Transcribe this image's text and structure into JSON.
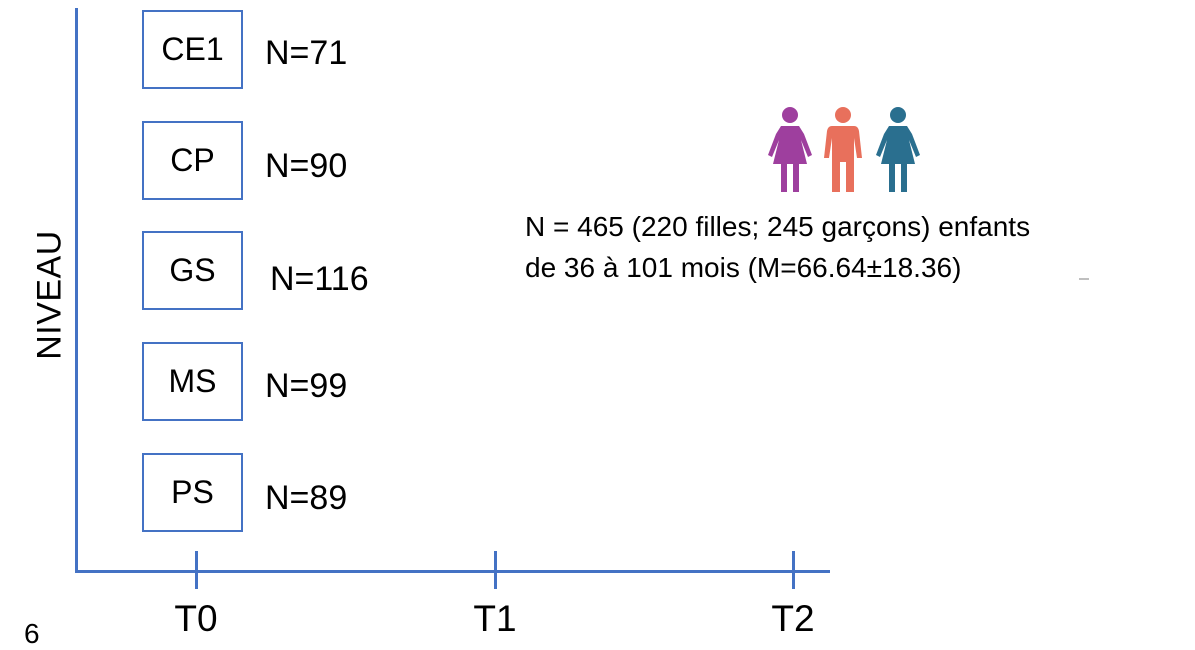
{
  "y_axis_label": "NIVEAU",
  "x_axis": {
    "ticks": [
      "T0",
      "T1",
      "T2"
    ]
  },
  "levels": [
    {
      "label": "CE1",
      "count": "N=71"
    },
    {
      "label": "CP",
      "count": "N=90"
    },
    {
      "label": "GS",
      "count": "N=116"
    },
    {
      "label": "MS",
      "count": "N=99"
    },
    {
      "label": "PS",
      "count": "N=89"
    }
  ],
  "sample_info": {
    "line1": "N = 465 (220 filles; 245 garçons) enfants",
    "line2": "de 36 à 101 mois (M=66.64±18.36)"
  },
  "icons": {
    "people": [
      {
        "name": "girl-figure-icon",
        "color": "#9e3f9e"
      },
      {
        "name": "boy-figure-icon",
        "color": "#e8705c"
      },
      {
        "name": "girl-figure-icon",
        "color": "#2a6f8f"
      }
    ]
  },
  "slide_number": "6"
}
